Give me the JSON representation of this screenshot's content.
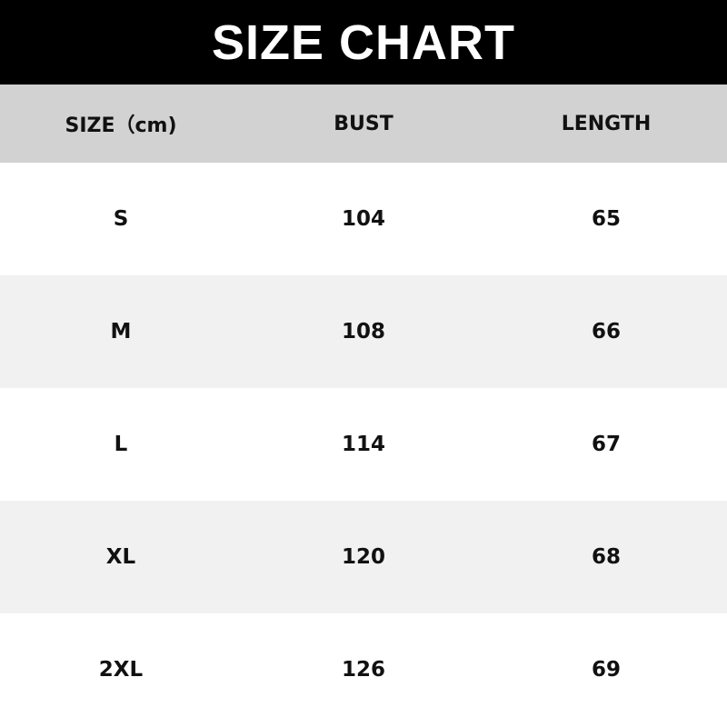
{
  "title": "SIZE CHART",
  "columns": [
    "SIZE（cm)",
    "BUST",
    "LENGTH"
  ],
  "rows": [
    {
      "size": "S",
      "bust": "104",
      "length": "65"
    },
    {
      "size": "M",
      "bust": "108",
      "length": "66"
    },
    {
      "size": "L",
      "bust": "114",
      "length": "67"
    },
    {
      "size": "XL",
      "bust": "120",
      "length": "68"
    },
    {
      "size": "2XL",
      "bust": "126",
      "length": "69"
    }
  ],
  "colors": {
    "title_bg": "#000000",
    "header_bg": "#d2d2d2",
    "alt_row_bg": "#f1f1f1"
  }
}
